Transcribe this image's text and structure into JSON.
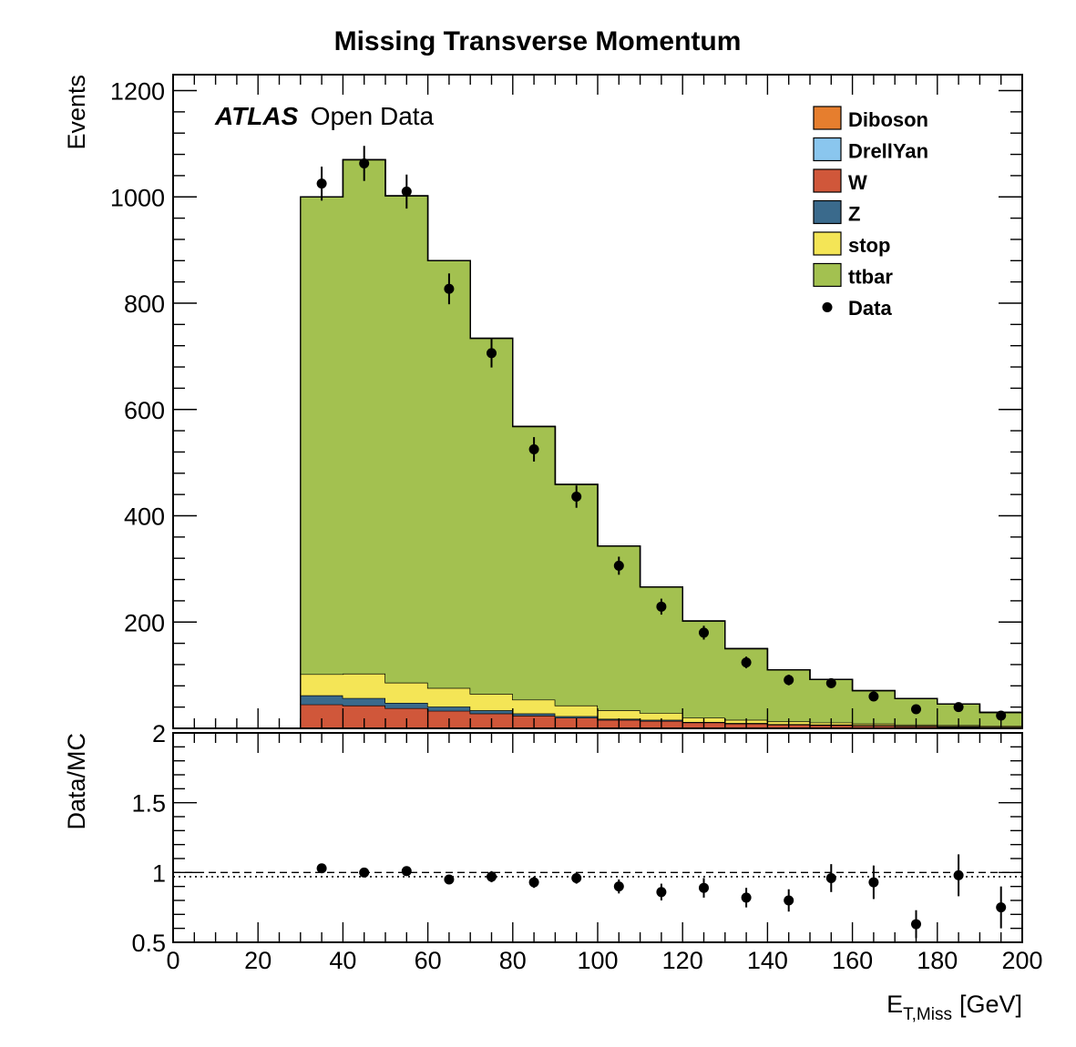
{
  "chart_data": [
    {
      "type": "bar",
      "stacked": true,
      "title": "Missing Transverse Momentum",
      "ylabel": "Events",
      "label_bold": "ATLAS",
      "label_text": "Open Data",
      "xlim": [
        0,
        200
      ],
      "ylim": [
        0,
        1230
      ],
      "bin_edges": [
        30,
        40,
        50,
        60,
        70,
        80,
        90,
        100,
        110,
        120,
        130,
        140,
        150,
        160,
        170,
        180,
        190,
        200
      ],
      "yticks": [
        200,
        400,
        600,
        800,
        1000,
        1200
      ],
      "legend_position": "top-right",
      "series": [
        {
          "name": "W",
          "color": "#d0573a",
          "values": [
            45,
            43,
            38,
            33,
            28,
            24,
            20,
            16,
            14,
            11,
            9,
            7,
            6,
            5,
            4,
            3,
            2
          ]
        },
        {
          "name": "Z",
          "color": "#3a6a8c",
          "values": [
            17,
            14,
            10,
            8,
            6,
            4,
            3,
            2,
            2,
            1,
            1,
            1,
            1,
            1,
            1,
            1,
            1
          ]
        },
        {
          "name": "stop",
          "color": "#f4e556",
          "values": [
            40,
            46,
            38,
            35,
            31,
            26,
            20,
            16,
            13,
            8,
            6,
            5,
            4,
            3,
            2,
            2,
            2
          ]
        },
        {
          "name": "ttbar",
          "color": "#a3c150",
          "values": [
            898,
            967,
            916,
            804,
            669,
            514,
            416,
            309,
            237,
            182,
            134,
            97,
            81,
            62,
            49,
            40,
            25
          ]
        },
        {
          "name": "DrellYan",
          "color": "#8ac6ee",
          "values": [
            0,
            0,
            0,
            0,
            0,
            0,
            0,
            0,
            0,
            0,
            0,
            0,
            0,
            0,
            0,
            0,
            0
          ]
        },
        {
          "name": "Diboson",
          "color": "#e67e2e",
          "values": [
            0,
            0,
            0,
            0,
            0,
            0,
            0,
            0,
            0,
            0,
            0,
            0,
            0,
            0,
            0,
            0,
            0
          ]
        }
      ],
      "legend": [
        {
          "name": "Diboson",
          "color": "#e67e2e",
          "marker": "box"
        },
        {
          "name": "DrellYan",
          "color": "#8ac6ee",
          "marker": "box"
        },
        {
          "name": "W",
          "color": "#d0573a",
          "marker": "box"
        },
        {
          "name": "Z",
          "color": "#3a6a8c",
          "marker": "box"
        },
        {
          "name": "stop",
          "color": "#f4e556",
          "marker": "box"
        },
        {
          "name": "ttbar",
          "color": "#a3c150",
          "marker": "box"
        },
        {
          "name": "Data",
          "color": "#000000",
          "marker": "dot"
        }
      ],
      "data_points": {
        "name": "Data",
        "x": [
          35,
          45,
          55,
          65,
          75,
          85,
          95,
          105,
          115,
          125,
          135,
          145,
          155,
          165,
          175,
          185,
          195
        ],
        "y": [
          1025,
          1063,
          1010,
          827,
          706,
          525,
          436,
          306,
          229,
          180,
          124,
          91,
          85,
          60,
          36,
          40,
          24
        ],
        "yerr": [
          32,
          33,
          32,
          29,
          27,
          23,
          21,
          17,
          15,
          13,
          11,
          10,
          9,
          8,
          6,
          6,
          5
        ]
      }
    },
    {
      "type": "scatter",
      "ylabel": "Data/MC",
      "xlabel": "E",
      "xlabel_sub": "T,Miss",
      "xlabel_unit": "[GeV]",
      "xlim": [
        0,
        200
      ],
      "ylim": [
        0.5,
        2
      ],
      "xticks": [
        0,
        20,
        40,
        60,
        80,
        100,
        120,
        140,
        160,
        180,
        200
      ],
      "ytick_labels": [
        "0.5",
        "1",
        "1.5",
        "2"
      ],
      "ytick_values": [
        0.5,
        1,
        1.5,
        2
      ],
      "reference_line_dashed": 1.0,
      "reference_line_dotted": 0.97,
      "x": [
        35,
        45,
        55,
        65,
        75,
        85,
        95,
        105,
        115,
        125,
        135,
        145,
        155,
        165,
        175,
        185,
        195
      ],
      "y": [
        1.03,
        1.0,
        1.01,
        0.95,
        0.97,
        0.93,
        0.96,
        0.9,
        0.86,
        0.89,
        0.82,
        0.8,
        0.96,
        0.93,
        0.63,
        0.98,
        0.75
      ],
      "yerr": [
        0.03,
        0.03,
        0.03,
        0.03,
        0.04,
        0.04,
        0.04,
        0.05,
        0.06,
        0.07,
        0.07,
        0.08,
        0.1,
        0.12,
        0.1,
        0.15,
        0.15
      ]
    }
  ]
}
